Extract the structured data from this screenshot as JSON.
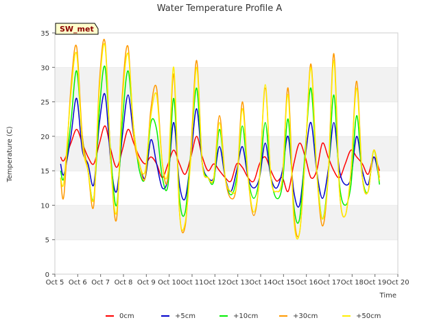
{
  "chart_data": {
    "type": "line",
    "title": "Water Temperature Profile A",
    "xlabel": "Time",
    "ylabel": "Temperature (C)",
    "badge": "SW_met",
    "ylim": [
      0,
      35
    ],
    "yticks": [
      0,
      5,
      10,
      15,
      20,
      25,
      30,
      35
    ],
    "xlim": [
      0,
      15
    ],
    "xticks": [
      "Oct 5",
      "Oct 6",
      "Oct 7",
      "Oct 8",
      "Oct 9",
      "Oct 10",
      "Oct 11",
      "Oct 12",
      "Oct 13",
      "Oct 14",
      "Oct 15",
      "Oct 16",
      "Oct 17",
      "Oct 18",
      "Oct 19",
      "Oct 20"
    ],
    "grid": "horizontal bands",
    "legend_position": "bottom",
    "series": [
      {
        "name": "0cm",
        "color": "#ff0000",
        "x": [
          0.25,
          0.4,
          0.7,
          0.95,
          1.2,
          1.45,
          1.7,
          1.95,
          2.2,
          2.45,
          2.7,
          2.95,
          3.2,
          3.45,
          3.7,
          3.95,
          4.2,
          4.45,
          4.7,
          4.95,
          5.2,
          5.45,
          5.7,
          5.95,
          6.2,
          6.45,
          6.7,
          6.95,
          7.2,
          7.45,
          7.7,
          7.95,
          8.2,
          8.45,
          8.7,
          8.95,
          9.2,
          9.45,
          9.7,
          9.95,
          10.2,
          10.45,
          10.7,
          10.95,
          11.2,
          11.45,
          11.7,
          11.95,
          12.2,
          12.45,
          12.7,
          12.95,
          13.2,
          13.45,
          13.7,
          13.95,
          14.2
        ],
        "values": [
          17,
          16.5,
          19,
          21,
          19,
          17,
          16,
          19,
          21.5,
          18,
          15.5,
          18,
          21,
          19,
          17,
          16,
          17,
          16,
          14,
          16,
          18,
          16,
          14.5,
          17,
          20,
          17,
          15,
          16,
          15,
          14,
          13.5,
          16,
          15.5,
          14,
          13.5,
          16,
          17,
          15,
          13.5,
          14,
          12,
          16,
          19,
          17,
          14,
          15,
          19,
          17,
          15,
          14,
          16,
          18,
          17,
          16,
          14.5,
          17,
          15
        ]
      },
      {
        "name": "+5cm",
        "color": "#0000cc",
        "x": [
          0.25,
          0.4,
          0.7,
          0.95,
          1.2,
          1.45,
          1.7,
          1.95,
          2.2,
          2.45,
          2.7,
          2.95,
          3.2,
          3.45,
          3.7,
          3.95,
          4.2,
          4.45,
          4.7,
          4.95,
          5.2,
          5.45,
          5.7,
          5.95,
          6.2,
          6.45,
          6.7,
          6.95,
          7.2,
          7.45,
          7.7,
          7.95,
          8.2,
          8.45,
          8.7,
          8.95,
          9.2,
          9.45,
          9.7,
          9.95,
          10.2,
          10.45,
          10.7,
          10.95,
          11.2,
          11.45,
          11.7,
          11.95,
          12.2,
          12.45,
          12.7,
          12.95,
          13.2,
          13.45,
          13.7,
          13.95,
          14.2
        ],
        "values": [
          16,
          14.5,
          20,
          25.5,
          18,
          16,
          13,
          22,
          26,
          16,
          12,
          20,
          26,
          20,
          16,
          14,
          19.5,
          16,
          12.5,
          14,
          22,
          13,
          11,
          17,
          24,
          16,
          14,
          14,
          18.5,
          14,
          12,
          15,
          18.5,
          14,
          12.5,
          14,
          19,
          14,
          12.5,
          15,
          20,
          12,
          10,
          17,
          22,
          15,
          11,
          15,
          22,
          15,
          13,
          14,
          20,
          15,
          13,
          17,
          13.5
        ]
      },
      {
        "name": "+10cm",
        "color": "#00ee00",
        "x": [
          0.25,
          0.4,
          0.7,
          0.95,
          1.2,
          1.45,
          1.7,
          1.95,
          2.2,
          2.45,
          2.7,
          2.95,
          3.2,
          3.45,
          3.7,
          3.95,
          4.2,
          4.45,
          4.7,
          4.95,
          5.2,
          5.45,
          5.7,
          5.95,
          6.2,
          6.45,
          6.7,
          6.95,
          7.2,
          7.45,
          7.7,
          7.95,
          8.2,
          8.45,
          8.7,
          8.95,
          9.2,
          9.45,
          9.7,
          9.95,
          10.2,
          10.45,
          10.7,
          10.95,
          11.2,
          11.45,
          11.7,
          11.95,
          12.2,
          12.45,
          12.7,
          12.95,
          13.2,
          13.45,
          13.7,
          13.95,
          14.2
        ],
        "values": [
          15,
          14,
          22,
          29.5,
          20,
          15,
          11,
          24,
          30,
          17,
          10,
          22,
          29.5,
          21,
          15,
          14,
          22,
          21,
          14,
          13,
          25.5,
          11,
          9,
          18,
          27,
          16,
          14,
          13.5,
          21,
          14,
          11.5,
          14,
          21.5,
          14,
          11,
          14,
          22,
          14,
          11,
          13,
          22.5,
          10,
          8,
          18,
          27,
          15,
          8,
          14,
          26,
          13,
          10,
          13,
          23,
          14,
          12,
          18,
          13
        ]
      },
      {
        "name": "+30cm",
        "color": "#ff9900",
        "x": [
          0.25,
          0.4,
          0.7,
          0.95,
          1.2,
          1.45,
          1.7,
          1.95,
          2.2,
          2.45,
          2.7,
          2.95,
          3.2,
          3.45,
          3.7,
          3.95,
          4.2,
          4.45,
          4.7,
          4.95,
          5.2,
          5.45,
          5.7,
          5.95,
          6.2,
          6.45,
          6.7,
          6.95,
          7.2,
          7.45,
          7.7,
          7.95,
          8.2,
          8.45,
          8.7,
          8.95,
          9.2,
          9.45,
          9.7,
          9.95,
          10.2,
          10.45,
          10.7,
          10.95,
          11.2,
          11.45,
          11.7,
          11.95,
          12.2,
          12.45,
          12.7,
          12.95,
          13.2,
          13.45,
          13.7,
          13.95,
          14.2
        ],
        "values": [
          14,
          11.5,
          27,
          33,
          20,
          15,
          10,
          28,
          33.5,
          16,
          8,
          26,
          33,
          20,
          16,
          14,
          24,
          27,
          16,
          14,
          29,
          9,
          7,
          18,
          31,
          16,
          14,
          14,
          23,
          14,
          11,
          13,
          25,
          14,
          8.5,
          14,
          27,
          14,
          12,
          14,
          27,
          9,
          6,
          17,
          30.5,
          15,
          7,
          14,
          32,
          12,
          8.5,
          15,
          28,
          14,
          12,
          18,
          14
        ]
      },
      {
        "name": "+50cm",
        "color": "#ffee00",
        "x": [
          0.25,
          0.4,
          0.7,
          0.95,
          1.2,
          1.45,
          1.7,
          1.95,
          2.2,
          2.45,
          2.7,
          2.95,
          3.2,
          3.45,
          3.7,
          3.95,
          4.2,
          4.45,
          4.7,
          4.95,
          5.2,
          5.45,
          5.7,
          5.95,
          6.2,
          6.45,
          6.7,
          6.95,
          7.2,
          7.45,
          7.7,
          7.95,
          8.2,
          8.45,
          8.7,
          8.95,
          9.2,
          9.45,
          9.7,
          9.95,
          10.2,
          10.45,
          10.7,
          10.95,
          11.2,
          11.45,
          11.7,
          11.95,
          12.2,
          12.45,
          12.7,
          12.95,
          13.2,
          13.45,
          13.7,
          13.95,
          14.2
        ],
        "values": [
          14,
          13.5,
          26,
          32,
          19,
          15,
          11,
          27,
          33,
          16,
          9,
          25,
          32,
          21,
          16,
          15,
          23,
          26,
          16,
          15,
          30,
          9,
          7.5,
          17,
          30,
          16,
          14,
          14,
          22,
          14,
          12,
          13,
          24,
          14,
          9,
          14,
          27.5,
          14,
          12,
          14,
          26,
          8,
          6,
          17,
          30,
          15,
          8,
          14,
          31,
          12,
          8.5,
          15,
          27,
          14,
          12,
          18,
          13.5
        ]
      }
    ]
  }
}
